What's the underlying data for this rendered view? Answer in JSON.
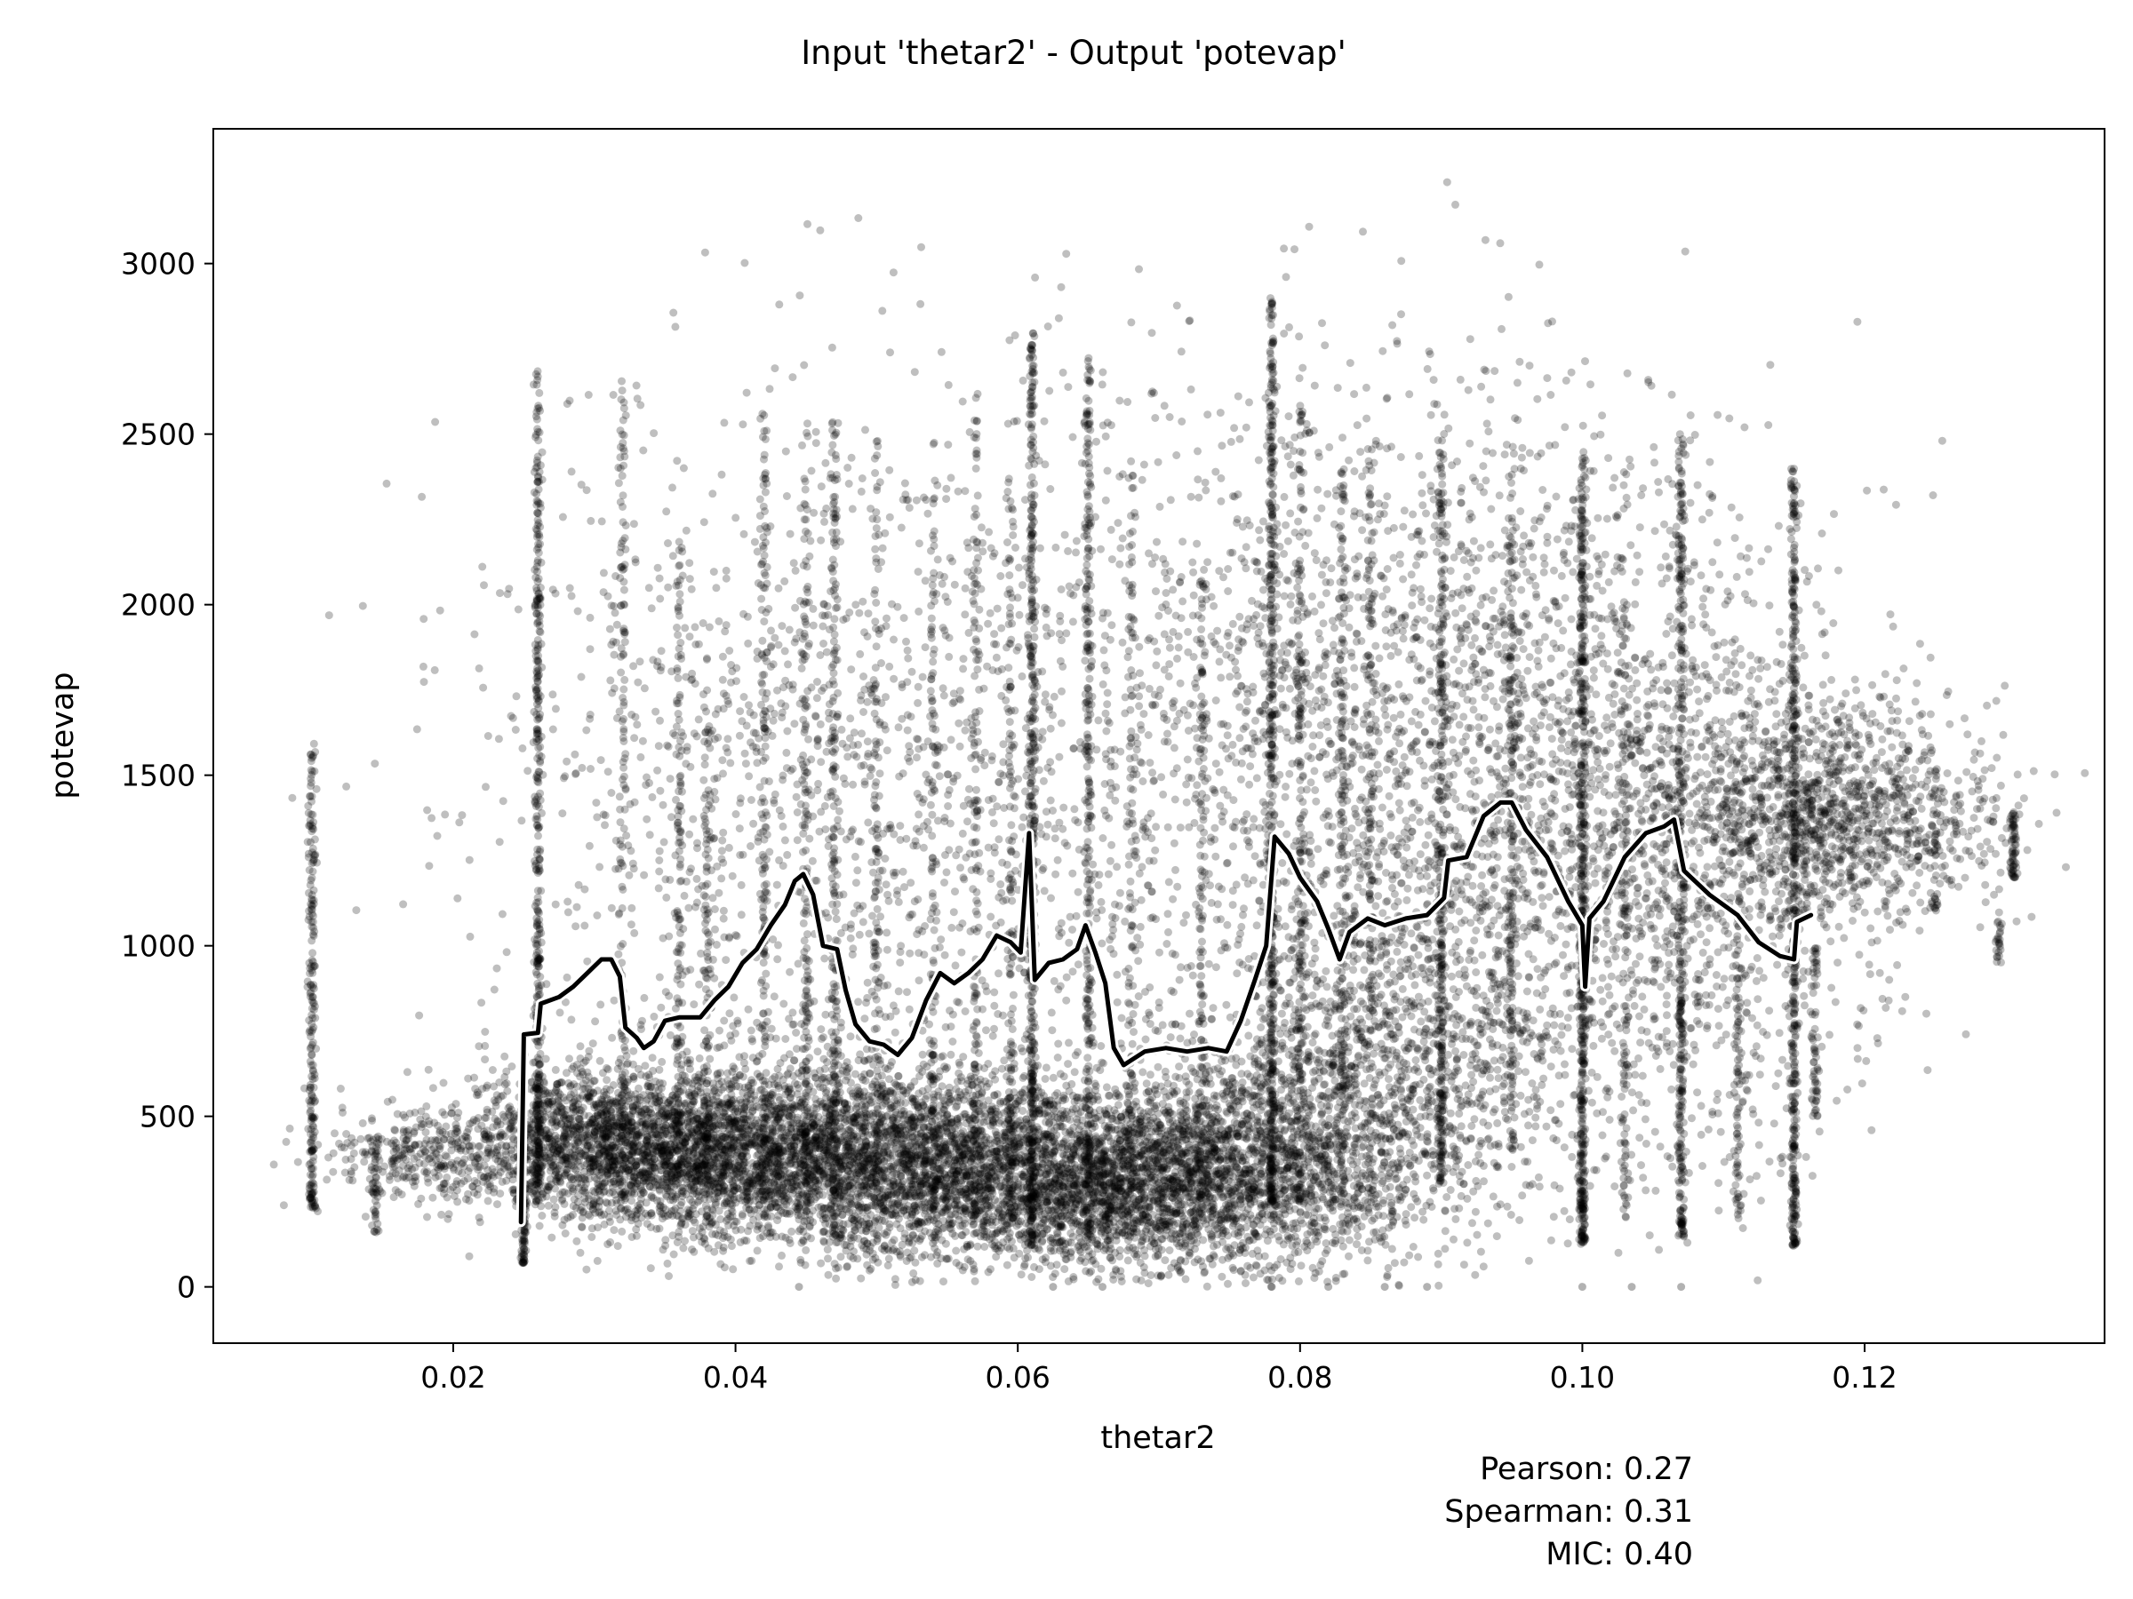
{
  "chart_data": {
    "type": "scatter",
    "title": "Input 'thetar2' - Output 'potevap'",
    "xlabel": "thetar2",
    "ylabel": "potevap",
    "xlim": [
      0.003,
      0.137
    ],
    "ylim": [
      -165,
      3395
    ],
    "x_ticks": [
      {
        "value": 0.02,
        "label": "0.02"
      },
      {
        "value": 0.04,
        "label": "0.04"
      },
      {
        "value": 0.06,
        "label": "0.06"
      },
      {
        "value": 0.08,
        "label": "0.08"
      },
      {
        "value": 0.1,
        "label": "0.10"
      },
      {
        "value": 0.12,
        "label": "0.12"
      }
    ],
    "y_ticks": [
      {
        "value": 0,
        "label": "0"
      },
      {
        "value": 500,
        "label": "500"
      },
      {
        "value": 1000,
        "label": "1000"
      },
      {
        "value": 1500,
        "label": "1500"
      },
      {
        "value": 2000,
        "label": "2000"
      },
      {
        "value": 2500,
        "label": "2500"
      },
      {
        "value": 3000,
        "label": "3000"
      }
    ],
    "grid": false,
    "legend": "none",
    "point_color": "#000000",
    "point_alpha": 0.25,
    "trend_color": "#000000",
    "trend_outline_color": "#ffffff",
    "stats": [
      "Pearson: 0.27",
      "Spearman: 0.31",
      "MIC: 0.40"
    ],
    "clusters": [
      {
        "x": 0.03,
        "y": 420,
        "sx": 0.0045,
        "sy": 110,
        "n": 1300
      },
      {
        "x": 0.04,
        "y": 400,
        "sx": 0.006,
        "sy": 130,
        "n": 2200
      },
      {
        "x": 0.053,
        "y": 360,
        "sx": 0.006,
        "sy": 140,
        "n": 2200
      },
      {
        "x": 0.066,
        "y": 310,
        "sx": 0.006,
        "sy": 130,
        "n": 2000
      },
      {
        "x": 0.076,
        "y": 350,
        "sx": 0.006,
        "sy": 160,
        "n": 1500
      },
      {
        "x": 0.086,
        "y": 650,
        "sx": 0.006,
        "sy": 280,
        "n": 1200
      },
      {
        "x": 0.046,
        "y": 1450,
        "sx": 0.012,
        "sy": 550,
        "n": 1300
      },
      {
        "x": 0.09,
        "y": 1700,
        "sx": 0.012,
        "sy": 500,
        "n": 1900
      },
      {
        "x": 0.104,
        "y": 1150,
        "sx": 0.009,
        "sy": 450,
        "n": 1300
      },
      {
        "x": 0.114,
        "y": 1400,
        "sx": 0.006,
        "sy": 200,
        "n": 800
      },
      {
        "x": 0.12,
        "y": 1380,
        "sx": 0.005,
        "sy": 150,
        "n": 600
      },
      {
        "x": 0.018,
        "y": 400,
        "sx": 0.004,
        "sy": 80,
        "n": 350
      },
      {
        "x": 0.07,
        "y": 1500,
        "sx": 0.014,
        "sy": 600,
        "n": 900
      }
    ],
    "columns": [
      {
        "x": 0.01,
        "y0": 230,
        "y1": 1600,
        "n": 220
      },
      {
        "x": 0.0145,
        "y0": 160,
        "y1": 400,
        "n": 40
      },
      {
        "x": 0.025,
        "y0": 70,
        "y1": 300,
        "n": 70
      },
      {
        "x": 0.026,
        "y0": 250,
        "y1": 2700,
        "n": 400
      },
      {
        "x": 0.032,
        "y0": 250,
        "y1": 2700,
        "n": 130
      },
      {
        "x": 0.036,
        "y0": 300,
        "y1": 2200,
        "n": 120
      },
      {
        "x": 0.038,
        "y0": 300,
        "y1": 1700,
        "n": 110
      },
      {
        "x": 0.042,
        "y0": 300,
        "y1": 2600,
        "n": 140
      },
      {
        "x": 0.045,
        "y0": 300,
        "y1": 2550,
        "n": 140
      },
      {
        "x": 0.047,
        "y0": 150,
        "y1": 2550,
        "n": 180
      },
      {
        "x": 0.05,
        "y0": 300,
        "y1": 2500,
        "n": 100
      },
      {
        "x": 0.054,
        "y0": 200,
        "y1": 2500,
        "n": 100
      },
      {
        "x": 0.057,
        "y0": 200,
        "y1": 2650,
        "n": 130
      },
      {
        "x": 0.0595,
        "y0": 200,
        "y1": 2400,
        "n": 130
      },
      {
        "x": 0.061,
        "y0": 120,
        "y1": 2800,
        "n": 450
      },
      {
        "x": 0.065,
        "y0": 150,
        "y1": 2730,
        "n": 300
      },
      {
        "x": 0.068,
        "y0": 250,
        "y1": 2400,
        "n": 110
      },
      {
        "x": 0.073,
        "y0": 250,
        "y1": 2100,
        "n": 110
      },
      {
        "x": 0.078,
        "y0": 250,
        "y1": 2900,
        "n": 500
      },
      {
        "x": 0.08,
        "y0": 250,
        "y1": 2600,
        "n": 180
      },
      {
        "x": 0.083,
        "y0": 250,
        "y1": 2400,
        "n": 150
      },
      {
        "x": 0.085,
        "y0": 250,
        "y1": 2500,
        "n": 120
      },
      {
        "x": 0.09,
        "y0": 300,
        "y1": 2450,
        "n": 300
      },
      {
        "x": 0.095,
        "y0": 400,
        "y1": 2450,
        "n": 150
      },
      {
        "x": 0.1,
        "y0": 130,
        "y1": 2450,
        "n": 500
      },
      {
        "x": 0.103,
        "y0": 200,
        "y1": 2400,
        "n": 120
      },
      {
        "x": 0.107,
        "y0": 150,
        "y1": 2500,
        "n": 350
      },
      {
        "x": 0.111,
        "y0": 200,
        "y1": 1100,
        "n": 80
      },
      {
        "x": 0.115,
        "y0": 120,
        "y1": 2400,
        "n": 420
      },
      {
        "x": 0.1165,
        "y0": 500,
        "y1": 1000,
        "n": 60
      },
      {
        "x": 0.125,
        "y0": 1100,
        "y1": 1550,
        "n": 40
      },
      {
        "x": 0.1305,
        "y0": 1200,
        "y1": 1400,
        "n": 60
      },
      {
        "x": 0.1295,
        "y0": 950,
        "y1": 1100,
        "n": 25
      }
    ],
    "zero_points": [
      0.0445,
      0.0625,
      0.066,
      0.078,
      0.082,
      0.086,
      0.089,
      0.1,
      0.1035,
      0.107
    ],
    "trend_line": [
      [
        0.0248,
        190
      ],
      [
        0.025,
        740
      ],
      [
        0.026,
        745
      ],
      [
        0.0262,
        830
      ],
      [
        0.0275,
        850
      ],
      [
        0.0285,
        880
      ],
      [
        0.0295,
        920
      ],
      [
        0.0305,
        960
      ],
      [
        0.0312,
        960
      ],
      [
        0.0318,
        910
      ],
      [
        0.0322,
        760
      ],
      [
        0.033,
        730
      ],
      [
        0.0335,
        700
      ],
      [
        0.0342,
        720
      ],
      [
        0.035,
        780
      ],
      [
        0.036,
        790
      ],
      [
        0.0375,
        790
      ],
      [
        0.0385,
        840
      ],
      [
        0.0395,
        880
      ],
      [
        0.0405,
        950
      ],
      [
        0.0415,
        990
      ],
      [
        0.0425,
        1060
      ],
      [
        0.0435,
        1120
      ],
      [
        0.0442,
        1190
      ],
      [
        0.0448,
        1210
      ],
      [
        0.0455,
        1150
      ],
      [
        0.0462,
        1000
      ],
      [
        0.0472,
        990
      ],
      [
        0.0478,
        870
      ],
      [
        0.0485,
        770
      ],
      [
        0.0495,
        720
      ],
      [
        0.0505,
        710
      ],
      [
        0.0515,
        680
      ],
      [
        0.0525,
        730
      ],
      [
        0.0535,
        840
      ],
      [
        0.0545,
        920
      ],
      [
        0.0555,
        890
      ],
      [
        0.0565,
        920
      ],
      [
        0.0575,
        960
      ],
      [
        0.0585,
        1030
      ],
      [
        0.0595,
        1010
      ],
      [
        0.0602,
        980
      ],
      [
        0.0608,
        1330
      ],
      [
        0.0612,
        900
      ],
      [
        0.0622,
        950
      ],
      [
        0.0632,
        960
      ],
      [
        0.0642,
        990
      ],
      [
        0.0648,
        1060
      ],
      [
        0.0655,
        980
      ],
      [
        0.0662,
        890
      ],
      [
        0.0668,
        700
      ],
      [
        0.0675,
        650
      ],
      [
        0.069,
        690
      ],
      [
        0.0705,
        700
      ],
      [
        0.072,
        690
      ],
      [
        0.0735,
        700
      ],
      [
        0.0748,
        690
      ],
      [
        0.0758,
        780
      ],
      [
        0.0768,
        900
      ],
      [
        0.0776,
        1000
      ],
      [
        0.0782,
        1320
      ],
      [
        0.0792,
        1270
      ],
      [
        0.08,
        1200
      ],
      [
        0.0812,
        1130
      ],
      [
        0.082,
        1050
      ],
      [
        0.0828,
        960
      ],
      [
        0.0835,
        1040
      ],
      [
        0.0848,
        1080
      ],
      [
        0.086,
        1060
      ],
      [
        0.0875,
        1080
      ],
      [
        0.089,
        1090
      ],
      [
        0.0902,
        1140
      ],
      [
        0.0905,
        1250
      ],
      [
        0.0918,
        1260
      ],
      [
        0.093,
        1380
      ],
      [
        0.0942,
        1420
      ],
      [
        0.095,
        1420
      ],
      [
        0.096,
        1340
      ],
      [
        0.0975,
        1260
      ],
      [
        0.099,
        1130
      ],
      [
        0.1,
        1060
      ],
      [
        0.1002,
        880
      ],
      [
        0.1005,
        1080
      ],
      [
        0.1015,
        1130
      ],
      [
        0.103,
        1260
      ],
      [
        0.1045,
        1330
      ],
      [
        0.1058,
        1350
      ],
      [
        0.1065,
        1370
      ],
      [
        0.1072,
        1220
      ],
      [
        0.109,
        1150
      ],
      [
        0.111,
        1090
      ],
      [
        0.1125,
        1010
      ],
      [
        0.114,
        970
      ],
      [
        0.115,
        960
      ],
      [
        0.1152,
        1070
      ],
      [
        0.1162,
        1090
      ]
    ]
  }
}
